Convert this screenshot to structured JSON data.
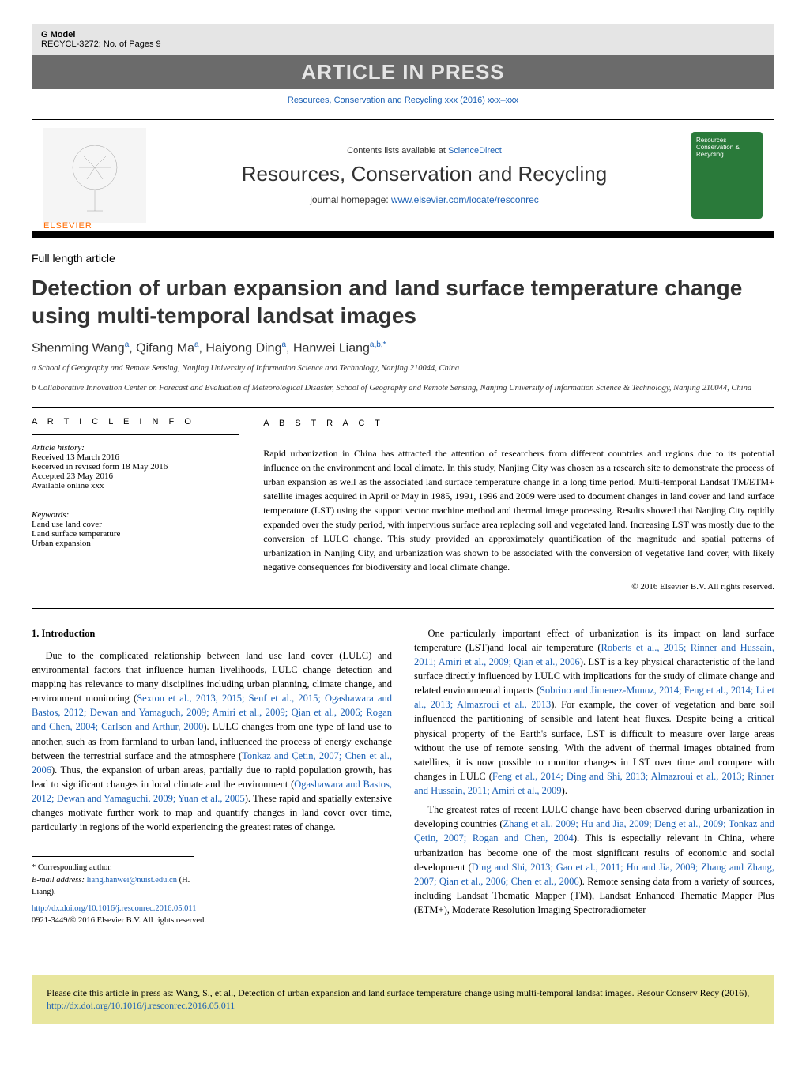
{
  "gmodel": {
    "title": "G Model",
    "ref": "RECYCL-3272;   No. of Pages 9"
  },
  "banner": "ARTICLE IN PRESS",
  "citation_line": "Resources, Conservation and Recycling xxx (2016) xxx–xxx",
  "header": {
    "sd_prefix": "Contents lists available at ",
    "sd": "ScienceDirect",
    "journal": "Resources, Conservation and Recycling",
    "homepage_prefix": "journal homepage: ",
    "homepage": "www.elsevier.com/locate/resconrec",
    "elsevier": "ELSEVIER",
    "cover_text": "Resources Conservation & Recycling"
  },
  "article_type": "Full length article",
  "title": "Detection of urban expansion and land surface temperature change using multi-temporal landsat images",
  "authors_html": "Shenming Wang<sup>a</sup>, Qifang Ma<sup>a</sup>, Haiyong Ding<sup>a</sup>, Hanwei Liang<sup>a,b,*</sup>",
  "affils": [
    "a School of Geography and Remote Sensing, Nanjing University of Information Science and Technology, Nanjing 210044, China",
    "b Collaborative Innovation Center on Forecast and Evaluation of Meteorological Disaster, School of Geography and Remote Sensing, Nanjing University of Information Science & Technology, Nanjing 210044, China"
  ],
  "info": {
    "hdr": "A R T I C L E    I N F O",
    "hist_lbl": "Article history:",
    "hist": [
      "Received 13 March 2016",
      "Received in revised form 18 May 2016",
      "Accepted 23 May 2016",
      "Available online xxx"
    ],
    "kw_lbl": "Keywords:",
    "kw": [
      "Land use land cover",
      "Land surface temperature",
      "Urban expansion"
    ]
  },
  "abs": {
    "hdr": "A B S T R A C T",
    "body": "Rapid urbanization in China has attracted the attention of researchers from different countries and regions due to its potential influence on the environment and local climate. In this study, Nanjing City was chosen as a research site to demonstrate the process of urban expansion as well as the associated land surface temperature change in a long time period. Multi-temporal Landsat TM/ETM+ satellite images acquired in April or May in 1985, 1991, 1996 and 2009 were used to document changes in land cover and land surface temperature (LST) using the support vector machine method and thermal image processing. Results showed that Nanjing City rapidly expanded over the study period, with impervious surface area replacing soil and vegetated land. Increasing LST was mostly due to the conversion of LULC change. This study provided an approximately quantification of the magnitude and spatial patterns of urbanization in Nanjing City, and urbanization was shown to be associated with the conversion of vegetative land cover, with likely negative consequences for biodiversity and local climate change.",
    "copyright": "© 2016 Elsevier B.V. All rights reserved."
  },
  "intro_hdr": "1.  Introduction",
  "p1a": "Due to the complicated relationship between land use land cover (LULC) and environmental factors that influence human livelihoods, LULC change detection and mapping has relevance to many disciplines including urban planning, climate change, and environment monitoring (",
  "r1": "Sexton et al., 2013, 2015; Senf et al., 2015; Ogashawara and Bastos, 2012; Dewan and Yamaguch, 2009; Amiri et al., 2009; Qian et al., 2006; Rogan and Chen, 2004; Carlson and Arthur, 2000",
  "p1b": "). LULC changes from one type of land use to another, such as from farmland to urban land, influenced the process of energy exchange between the terrestrial surface and the atmosphere (",
  "r2": "Tonkaz and Çetin, 2007; Chen et al., 2006",
  "p1c": "). Thus, the expansion of urban areas, partially due to rapid population growth, has lead to significant changes in local climate and the environment (",
  "r3": "Ogashawara and Bastos, 2012; Dewan and Yamaguchi, 2009; Yuan et al., 2005",
  "p1d": "). These rapid and spatially extensive changes motivate further work to map and quantify changes in land cover over time, particularly in regions of the world experiencing the greatest rates of change.",
  "p2a": "One particularly important effect of urbanization is its impact on land surface temperature (LST)and local air temperature (",
  "r4": "Roberts et al., 2015; Rinner and Hussain, 2011; Amiri et al., 2009; Qian et al., 2006",
  "p2b": "). LST is a key physical characteristic of the land surface directly influenced by LULC with implications for the study of climate change and related environmental impacts (",
  "r5": "Sobrino and Jimenez-Munoz, 2014; Feng et al., 2014; Li et al., 2013; Almazroui et al., 2013",
  "p2c": "). For example, the cover of vegetation and bare soil influenced the partitioning of sensible and latent heat fluxes. Despite being a critical physical property of the Earth's surface, LST is difficult to measure over large areas without the use of remote sensing. With the advent of thermal images obtained from satellites, it is now possible to monitor changes in LST over time and compare with changes in LULC (",
  "r6": "Feng et al., 2014; Ding and Shi, 2013; Almazroui et al., 2013; Rinner and Hussain, 2011; Amiri et al., 2009",
  "p2d": ").",
  "p3a": "The greatest rates of recent LULC change have been observed during urbanization in developing countries (",
  "r7": "Zhang et al., 2009; Hu and Jia, 2009; Deng et al., 2009; Tonkaz and Çetin, 2007; Rogan and Chen, 2004",
  "p3b": "). This is especially relevant in China, where urbanization has become one of the most significant results of economic and social development (",
  "r8": "Ding and Shi, 2013; Gao et al., 2011; Hu and Jia, 2009; Zhang and Zhang, 2007; Qian et al., 2006; Chen et al., 2006",
  "p3c": "). Remote sensing data from a variety of sources, including Landsat Thematic Mapper (TM), Landsat Enhanced Thematic Mapper Plus (ETM+), Moderate Resolution Imaging Spectroradiometer",
  "corr": {
    "label": "* Corresponding author.",
    "email_lbl": "E-mail address: ",
    "email": "liang.hanwei@nuist.edu.cn",
    "suffix": " (H. Liang)."
  },
  "doi": {
    "url": "http://dx.doi.org/10.1016/j.resconrec.2016.05.011",
    "issn": "0921-3449/© 2016 Elsevier B.V. All rights reserved."
  },
  "cite_box": {
    "text": "Please cite this article in press as: Wang, S., et al., Detection of urban expansion and land surface temperature change using multi-temporal landsat images. Resour Conserv Recy (2016), ",
    "url": "http://dx.doi.org/10.1016/j.resconrec.2016.05.011"
  }
}
